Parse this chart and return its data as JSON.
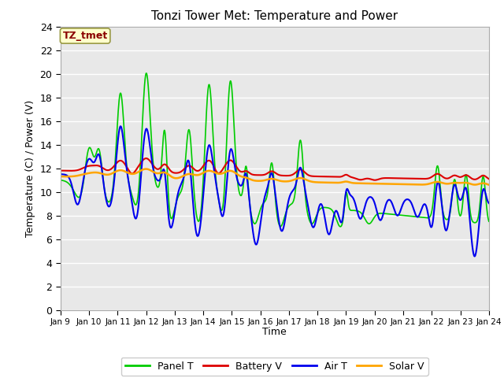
{
  "title": "Tonzi Tower Met: Temperature and Power",
  "xlabel": "Time",
  "ylabel": "Temperature (C) / Power (V)",
  "annotation": "TZ_tmet",
  "annotation_color": "#8B0000",
  "annotation_bg": "#FFFFCC",
  "ylim": [
    0,
    24
  ],
  "yticks": [
    0,
    2,
    4,
    6,
    8,
    10,
    12,
    14,
    16,
    18,
    20,
    22,
    24
  ],
  "xtick_labels": [
    "Jan 9",
    "Jan 10",
    "Jan 11",
    "Jan 12",
    "Jan 13",
    "Jan 14",
    "Jan 15",
    "Jan 16",
    "Jan 17",
    "Jan 18",
    "Jan 19",
    "Jan 20",
    "Jan 21",
    "Jan 22",
    "Jan 23",
    "Jan 24"
  ],
  "bg_color": "#E8E8E8",
  "fig_color": "#FFFFFF",
  "grid_color": "#FFFFFF",
  "line_colors": {
    "panel": "#00CC00",
    "battery": "#DD0000",
    "air": "#0000EE",
    "solar": "#FFA500"
  },
  "line_widths": {
    "panel": 1.2,
    "battery": 1.5,
    "air": 1.5,
    "solar": 1.8
  },
  "legend_labels": [
    "Panel T",
    "Battery V",
    "Air T",
    "Solar V"
  ]
}
